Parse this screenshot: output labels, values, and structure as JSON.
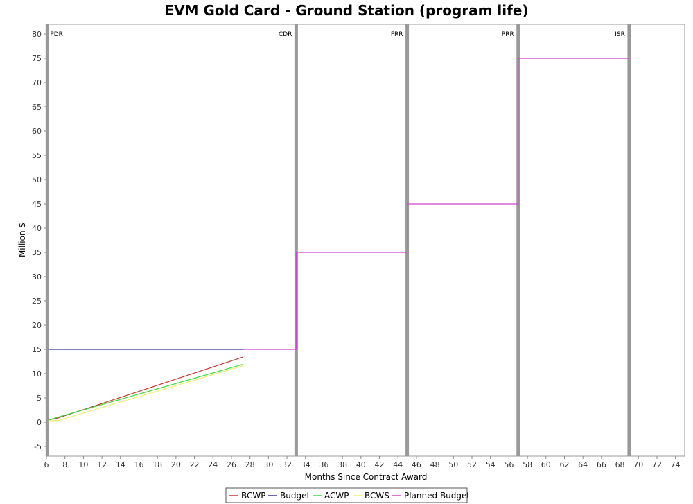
{
  "chart_data": {
    "type": "line",
    "title": "EVM Gold Card - Ground Station (program life)",
    "xlabel": "Months Since Contract Award",
    "ylabel": "Million $",
    "xlim": [
      6,
      75
    ],
    "ylim": [
      -7,
      82
    ],
    "xticks": [
      6,
      8,
      10,
      12,
      14,
      16,
      18,
      20,
      22,
      24,
      26,
      28,
      30,
      32,
      34,
      36,
      38,
      40,
      42,
      44,
      46,
      48,
      50,
      52,
      54,
      56,
      58,
      60,
      62,
      64,
      66,
      68,
      70,
      72,
      74
    ],
    "yticks": [
      -5,
      0,
      5,
      10,
      15,
      20,
      25,
      30,
      35,
      40,
      45,
      50,
      55,
      60,
      65,
      70,
      75,
      80
    ],
    "grid": false,
    "legend_position": "bottom-center",
    "milestones": [
      {
        "label": "PDR",
        "x": 6.1
      },
      {
        "label": "CDR",
        "x": 33
      },
      {
        "label": "FRR",
        "x": 45
      },
      {
        "label": "PRR",
        "x": 57
      },
      {
        "label": "ISR",
        "x": 69
      }
    ],
    "series": [
      {
        "name": "BCWP",
        "color": "#cc3333",
        "x": [
          6.2,
          7,
          27.2
        ],
        "y": [
          0.5,
          0.7,
          13.4
        ]
      },
      {
        "name": "Budget",
        "color": "#333399",
        "x": [
          6.2,
          27.2
        ],
        "y": [
          15,
          15
        ]
      },
      {
        "name": "ACWP",
        "color": "#33dd33",
        "x": [
          6.2,
          7,
          27.2
        ],
        "y": [
          0.4,
          0.9,
          11.9
        ]
      },
      {
        "name": "BCWS",
        "color": "#eeee66",
        "x": [
          6.2,
          7.2,
          27.2
        ],
        "y": [
          0.3,
          0.3,
          11.6
        ]
      },
      {
        "name": "Planned Budget",
        "color": "#cc44cc",
        "x": [
          27.2,
          33,
          33,
          45,
          45,
          57,
          57,
          69
        ],
        "y": [
          15,
          15,
          35,
          35,
          45,
          45,
          75,
          75
        ]
      }
    ]
  }
}
